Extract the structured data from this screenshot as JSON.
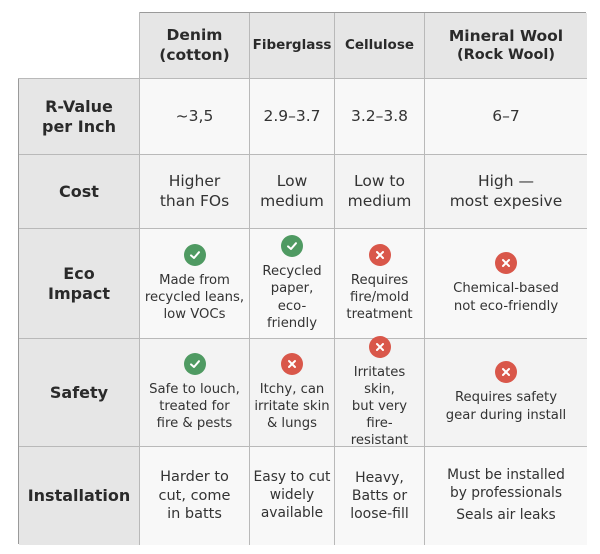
{
  "columns": [
    {
      "line1": "Denim",
      "line2": "(cotton)"
    },
    {
      "line1": "Fiberglass"
    },
    {
      "line1": "Cellulose"
    },
    {
      "line1": "Mineral Wool",
      "line2": "(Rock Wool)"
    }
  ],
  "rows": {
    "rvalue": {
      "label1": "R-Value",
      "label2": "per Inch",
      "values": [
        "~3,5",
        "2.9–3.7",
        "3.2–3.8",
        "6–7"
      ]
    },
    "cost": {
      "label": "Cost",
      "values": [
        [
          "Higher",
          "than FOs"
        ],
        [
          "Low",
          "medium"
        ],
        [
          "Low to",
          "medium"
        ],
        [
          "High —",
          "most expesive"
        ]
      ]
    },
    "eco": {
      "label1": "Eco",
      "label2": "Impact",
      "icons": [
        "check-icon",
        "check-icon",
        "x-icon",
        "x-icon"
      ],
      "values": [
        [
          "Made from",
          "recycled leans,",
          "low VOCs"
        ],
        [
          "Recycled",
          "paper,",
          "eco-friendly"
        ],
        [
          "Requires",
          "fire/mold",
          "treatment"
        ],
        [
          "Chemical-based",
          "not eco-friendly"
        ]
      ]
    },
    "safety": {
      "label": "Safety",
      "icons": [
        "check-icon",
        "x-icon",
        "x-icon",
        "x-icon"
      ],
      "values": [
        [
          "Safe to louch,",
          "treated for",
          "fire & pests"
        ],
        [
          "Itchy, can",
          "irritate skin",
          "& lungs"
        ],
        [
          "Irritates skin,",
          "but very",
          "fire-resistant"
        ],
        [
          "Requires safety",
          "gear during install"
        ]
      ]
    },
    "install": {
      "label": "Installation",
      "values": [
        [
          "Harder to",
          "cut, come",
          "in batts"
        ],
        [
          "Easy to cut",
          "widely",
          "available"
        ],
        [
          "Heavy,",
          "Batts or",
          "loose-fill"
        ],
        [
          "Must be installed",
          "by professionals",
          "Seals air leaks"
        ]
      ]
    }
  },
  "colors": {
    "check": "#4f9a62",
    "x": "#d9574a",
    "header_bg": "#e6e6e6"
  }
}
